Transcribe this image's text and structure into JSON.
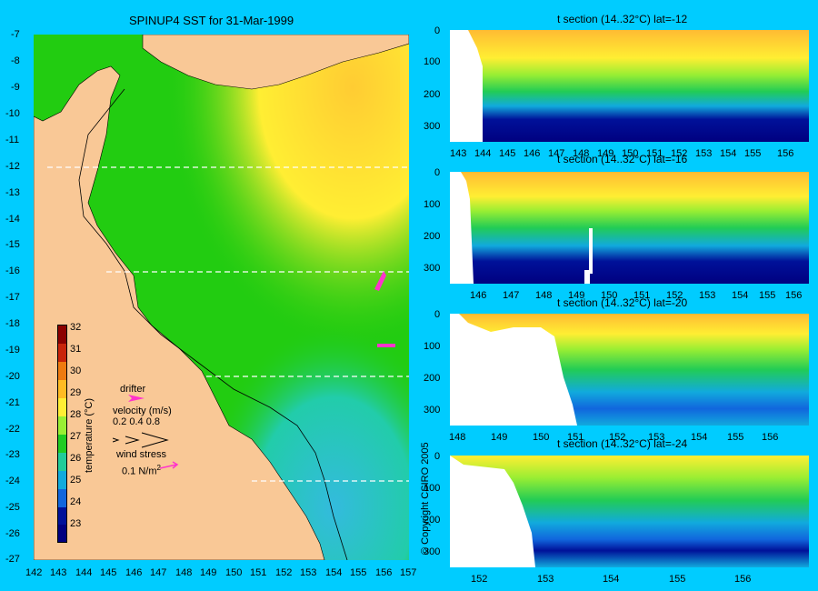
{
  "map": {
    "title": "SPINUP4 SST for 31-Mar-1999",
    "lat_labels": [
      "-7",
      "-8",
      "-9",
      "-10",
      "-11",
      "-12",
      "-13",
      "-14",
      "-15",
      "-16",
      "-17",
      "-18",
      "-19",
      "-20",
      "-21",
      "-22",
      "-23",
      "-24",
      "-25",
      "-26",
      "-27"
    ],
    "lon_labels": [
      "142",
      "143",
      "144",
      "145",
      "146",
      "147",
      "148",
      "149",
      "150",
      "151",
      "152",
      "153",
      "154",
      "155",
      "156",
      "157"
    ],
    "section_lats": [
      -12,
      -16,
      -20,
      -24
    ],
    "colors": {
      "land": "#f9c896",
      "sea": "#22cc11",
      "background": "#00ccff"
    }
  },
  "colorbar": {
    "title": "temperature (°C)",
    "ticks": [
      "32",
      "31",
      "30",
      "29",
      "28",
      "27",
      "26",
      "25",
      "24",
      "23"
    ],
    "colors": [
      "#8b0000",
      "#c8240a",
      "#ee7a10",
      "#ffbb22",
      "#ffee33",
      "#99ee33",
      "#22cc22",
      "#22cc99",
      "#11aadd",
      "#1166dd",
      "#001199",
      "#000080"
    ]
  },
  "legend": {
    "drifter_label": "drifter",
    "velocity_label": "velocity (m/s)",
    "velocity_values": "0.2 0.4 0.8",
    "wind_label": "wind stress",
    "wind_value": "0.1 N/m",
    "wind_exp": "2"
  },
  "copyright": "© Copyright CSIRO 2005",
  "sections": [
    {
      "title": "t section (14..32°C) lat=-12",
      "x_ticks": [
        "143",
        "144",
        "145",
        "146",
        "147",
        "148",
        "149",
        "150",
        "151",
        "152",
        "153",
        "154",
        "155",
        "156"
      ],
      "y_ticks": [
        "0",
        "100",
        "200",
        "300"
      ]
    },
    {
      "title": "t section (14..32°C) lat=-16",
      "x_ticks": [
        "146",
        "147",
        "148",
        "149",
        "150",
        "151",
        "152",
        "153",
        "154",
        "155",
        "156"
      ],
      "y_ticks": [
        "0",
        "100",
        "200",
        "300"
      ]
    },
    {
      "title": "t section (14..32°C) lat=-20",
      "x_ticks": [
        "148",
        "149",
        "150",
        "151",
        "152",
        "153",
        "154",
        "155",
        "156"
      ],
      "y_ticks": [
        "0",
        "100",
        "200",
        "300"
      ]
    },
    {
      "title": "t section (14..32°C) lat=-24",
      "x_ticks": [
        "152",
        "153",
        "154",
        "155",
        "156"
      ],
      "y_ticks": [
        "0",
        "100",
        "200",
        "300"
      ]
    }
  ]
}
